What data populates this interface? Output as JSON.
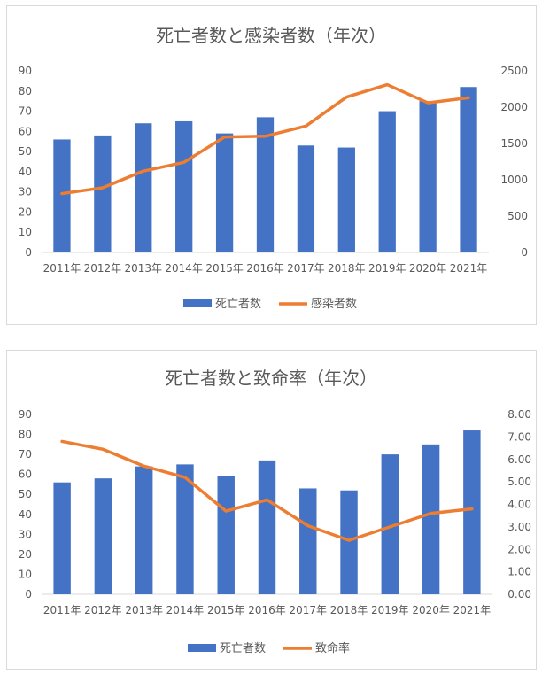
{
  "chart_data": [
    {
      "type": "bar+line",
      "title": "死亡者数と感染者数（年次）",
      "categories": [
        "2011年",
        "2012年",
        "2013年",
        "2014年",
        "2015年",
        "2016年",
        "2017年",
        "2018年",
        "2019年",
        "2020年",
        "2021年"
      ],
      "series": [
        {
          "name": "死亡者数",
          "type": "bar",
          "axis": "left",
          "color": "#4472C4",
          "values": [
            56,
            58,
            64,
            65,
            59,
            67,
            53,
            52,
            70,
            75,
            82
          ]
        },
        {
          "name": "感染者数",
          "type": "line",
          "axis": "right",
          "color": "#ED7D31",
          "values": [
            810,
            890,
            1120,
            1240,
            1590,
            1600,
            1740,
            2140,
            2310,
            2060,
            2130
          ]
        }
      ],
      "y_left": {
        "min": 0,
        "max": 90,
        "step": 10,
        "decimals": 0
      },
      "y_right": {
        "min": 0,
        "max": 2500,
        "step": 500,
        "decimals": 0
      },
      "grid": false,
      "legend": "bottom"
    },
    {
      "type": "bar+line",
      "title": "死亡者数と致命率（年次）",
      "categories": [
        "2011年",
        "2012年",
        "2013年",
        "2014年",
        "2015年",
        "2016年",
        "2017年",
        "2018年",
        "2019年",
        "2020年",
        "2021年"
      ],
      "series": [
        {
          "name": "死亡者数",
          "type": "bar",
          "axis": "left",
          "color": "#4472C4",
          "values": [
            56,
            58,
            64,
            65,
            59,
            67,
            53,
            52,
            70,
            75,
            82
          ]
        },
        {
          "name": "致命率",
          "type": "line",
          "axis": "right",
          "color": "#ED7D31",
          "values": [
            6.8,
            6.45,
            5.7,
            5.2,
            3.7,
            4.2,
            3.05,
            2.4,
            3.0,
            3.6,
            3.8
          ]
        }
      ],
      "y_left": {
        "min": 0,
        "max": 90,
        "step": 10,
        "decimals": 0
      },
      "y_right": {
        "min": 0,
        "max": 8,
        "step": 1,
        "decimals": 2
      },
      "grid": false,
      "legend": "bottom"
    }
  ]
}
